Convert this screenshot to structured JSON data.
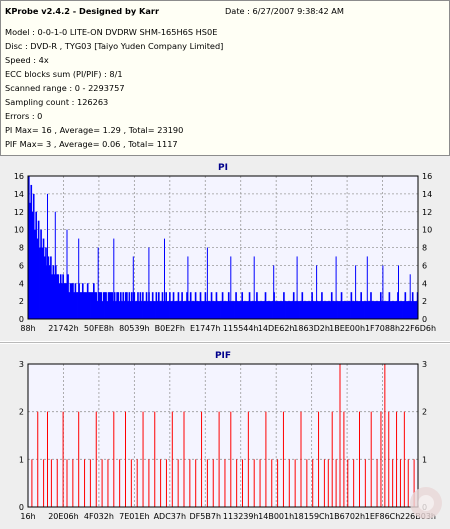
{
  "header": {
    "title": "KProbe v2.4.2 - Designed by Karr",
    "date": "Date : 6/27/2007 9:38:42 AM",
    "lines": [
      "Model : 0-0-1-0 LITE-ON DVDRW SHM-165H6S HS0E",
      "Disc : DVD-R , TYG03 [Taiyo Yuden Company Limited]",
      "Speed : 4x",
      "ECC blocks sum (PI/PIF) : 8/1",
      "Scanned range : 0 - 2293757",
      "Sampling count : 126263",
      "Errors : 0",
      "PI Max= 16 , Average= 1.29 , Total= 23190",
      "PIF Max= 3 , Average= 0.06 , Total= 1117"
    ]
  },
  "chart_data": [
    {
      "type": "bar",
      "title": "PI",
      "color": "#0000ff",
      "ylim": [
        0,
        16
      ],
      "yticks": [
        0,
        2,
        4,
        6,
        8,
        10,
        12,
        14,
        16
      ],
      "xticks": [
        "88h",
        "21742h",
        "50FE8h",
        "80539h",
        "B0E2Fh",
        "E1747h",
        "115544h",
        "14DE62h",
        "1863D2h",
        "1BEE00h",
        "1F7088h",
        "22F6D6h"
      ],
      "grid": true,
      "values": [
        16,
        13,
        15,
        12,
        14,
        10,
        12,
        9,
        11,
        8,
        10,
        8,
        9,
        7,
        8,
        6,
        7,
        6,
        7,
        5,
        6,
        5,
        6,
        5,
        5,
        4,
        5,
        4,
        5,
        4,
        4,
        4,
        5,
        3,
        4,
        4,
        4,
        3,
        4,
        3,
        3,
        4,
        3,
        3,
        4,
        3,
        3,
        3,
        4,
        3,
        3,
        3,
        3,
        4,
        3,
        3,
        2,
        3,
        3,
        3,
        2,
        3,
        3,
        3,
        2,
        3,
        3,
        3,
        3,
        2,
        3,
        2,
        3,
        3,
        2,
        3,
        2,
        3,
        2,
        3,
        3,
        2,
        3,
        2,
        3,
        2,
        3,
        2,
        2,
        3,
        2,
        3,
        2,
        3,
        2,
        2,
        3,
        2,
        3,
        2,
        2,
        3,
        2,
        2,
        3,
        2,
        3,
        2,
        2,
        3,
        2,
        2,
        3,
        2,
        2,
        3,
        2,
        2,
        3,
        2,
        2,
        2,
        3,
        2,
        2,
        3,
        2,
        2,
        2,
        3,
        2,
        2,
        3,
        2,
        2,
        2,
        3,
        2,
        2,
        2,
        3,
        2,
        2,
        2,
        3,
        2,
        2,
        2,
        2,
        3,
        2,
        2,
        2,
        3,
        2,
        2,
        2,
        2,
        3,
        2,
        2,
        2,
        2,
        3,
        2,
        2,
        2,
        2,
        2,
        3,
        2,
        2,
        2,
        2,
        3,
        2,
        2,
        2,
        2,
        2,
        3,
        2,
        2,
        2,
        2,
        2,
        3,
        2,
        2,
        2,
        2,
        2,
        2,
        3,
        2,
        2,
        2,
        2,
        2,
        2,
        3,
        2,
        2,
        2,
        2,
        2,
        2,
        2,
        3,
        2,
        2,
        2,
        2,
        2,
        2,
        2,
        3,
        2,
        2,
        2,
        2,
        2,
        2,
        3,
        2,
        2,
        2,
        2,
        2,
        2,
        2,
        3,
        2,
        2,
        2,
        2,
        2,
        2,
        2,
        3,
        2,
        2,
        2,
        2,
        2,
        2,
        2,
        3,
        2,
        2,
        2,
        2,
        2,
        2,
        2,
        3,
        2,
        2,
        2,
        2,
        2,
        2,
        2,
        3,
        2,
        2,
        2,
        2,
        2,
        2,
        2,
        3,
        2,
        2,
        2,
        2,
        2,
        2,
        2,
        3,
        2,
        2,
        2,
        2,
        2,
        2,
        2,
        3,
        2,
        2,
        2,
        2,
        2,
        2,
        3,
        2,
        2,
        2,
        2,
        2,
        2,
        3,
        2,
        2,
        2,
        2,
        2,
        3,
        2,
        2,
        2,
        2,
        2,
        3,
        2,
        2,
        2,
        3
      ],
      "peaks": [
        {
          "x": 0.05,
          "v": 14
        },
        {
          "x": 0.07,
          "v": 12
        },
        {
          "x": 0.1,
          "v": 10
        },
        {
          "x": 0.13,
          "v": 9
        },
        {
          "x": 0.18,
          "v": 8
        },
        {
          "x": 0.22,
          "v": 9
        },
        {
          "x": 0.27,
          "v": 7
        },
        {
          "x": 0.31,
          "v": 8
        },
        {
          "x": 0.35,
          "v": 9
        },
        {
          "x": 0.41,
          "v": 7
        },
        {
          "x": 0.46,
          "v": 8
        },
        {
          "x": 0.52,
          "v": 7
        },
        {
          "x": 0.58,
          "v": 7
        },
        {
          "x": 0.63,
          "v": 6
        },
        {
          "x": 0.69,
          "v": 7
        },
        {
          "x": 0.74,
          "v": 6
        },
        {
          "x": 0.79,
          "v": 7
        },
        {
          "x": 0.84,
          "v": 6
        },
        {
          "x": 0.87,
          "v": 7
        },
        {
          "x": 0.91,
          "v": 6
        },
        {
          "x": 0.95,
          "v": 6
        },
        {
          "x": 0.98,
          "v": 5
        }
      ]
    },
    {
      "type": "bar",
      "title": "PIF",
      "color": "#ff0000",
      "ylim": [
        0,
        3
      ],
      "yticks": [
        0,
        1,
        2,
        3
      ],
      "xticks": [
        "16h",
        "20E06h",
        "4F032h",
        "7E01Eh",
        "ADC37h",
        "DF5B7h",
        "113239h",
        "14B001h",
        "18159Ch",
        "1B6702h",
        "1EF86Ch",
        "226B03h"
      ],
      "grid": true,
      "bars": [
        {
          "x": 0.01,
          "v": 1
        },
        {
          "x": 0.025,
          "v": 2
        },
        {
          "x": 0.04,
          "v": 1
        },
        {
          "x": 0.05,
          "v": 2
        },
        {
          "x": 0.06,
          "v": 1
        },
        {
          "x": 0.075,
          "v": 1
        },
        {
          "x": 0.09,
          "v": 2
        },
        {
          "x": 0.1,
          "v": 1
        },
        {
          "x": 0.115,
          "v": 1
        },
        {
          "x": 0.13,
          "v": 2
        },
        {
          "x": 0.145,
          "v": 1
        },
        {
          "x": 0.16,
          "v": 1
        },
        {
          "x": 0.175,
          "v": 2
        },
        {
          "x": 0.19,
          "v": 1
        },
        {
          "x": 0.205,
          "v": 1
        },
        {
          "x": 0.22,
          "v": 2
        },
        {
          "x": 0.235,
          "v": 1
        },
        {
          "x": 0.25,
          "v": 2
        },
        {
          "x": 0.265,
          "v": 1
        },
        {
          "x": 0.28,
          "v": 1
        },
        {
          "x": 0.295,
          "v": 2
        },
        {
          "x": 0.31,
          "v": 1
        },
        {
          "x": 0.325,
          "v": 2
        },
        {
          "x": 0.34,
          "v": 1
        },
        {
          "x": 0.355,
          "v": 1
        },
        {
          "x": 0.37,
          "v": 2
        },
        {
          "x": 0.385,
          "v": 1
        },
        {
          "x": 0.4,
          "v": 2
        },
        {
          "x": 0.415,
          "v": 1
        },
        {
          "x": 0.43,
          "v": 1
        },
        {
          "x": 0.445,
          "v": 2
        },
        {
          "x": 0.46,
          "v": 1
        },
        {
          "x": 0.475,
          "v": 1
        },
        {
          "x": 0.49,
          "v": 2
        },
        {
          "x": 0.505,
          "v": 1
        },
        {
          "x": 0.52,
          "v": 2
        },
        {
          "x": 0.535,
          "v": 1
        },
        {
          "x": 0.55,
          "v": 1
        },
        {
          "x": 0.565,
          "v": 2
        },
        {
          "x": 0.58,
          "v": 1
        },
        {
          "x": 0.595,
          "v": 1
        },
        {
          "x": 0.61,
          "v": 2
        },
        {
          "x": 0.625,
          "v": 1
        },
        {
          "x": 0.64,
          "v": 1
        },
        {
          "x": 0.655,
          "v": 2
        },
        {
          "x": 0.67,
          "v": 1
        },
        {
          "x": 0.685,
          "v": 1
        },
        {
          "x": 0.7,
          "v": 2
        },
        {
          "x": 0.715,
          "v": 1
        },
        {
          "x": 0.73,
          "v": 1
        },
        {
          "x": 0.745,
          "v": 2
        },
        {
          "x": 0.76,
          "v": 1
        },
        {
          "x": 0.77,
          "v": 1
        },
        {
          "x": 0.78,
          "v": 2
        },
        {
          "x": 0.79,
          "v": 1
        },
        {
          "x": 0.8,
          "v": 3
        },
        {
          "x": 0.81,
          "v": 2
        },
        {
          "x": 0.82,
          "v": 1
        },
        {
          "x": 0.835,
          "v": 1
        },
        {
          "x": 0.85,
          "v": 2
        },
        {
          "x": 0.865,
          "v": 1
        },
        {
          "x": 0.88,
          "v": 2
        },
        {
          "x": 0.895,
          "v": 1
        },
        {
          "x": 0.905,
          "v": 2
        },
        {
          "x": 0.915,
          "v": 3
        },
        {
          "x": 0.925,
          "v": 2
        },
        {
          "x": 0.935,
          "v": 1
        },
        {
          "x": 0.945,
          "v": 2
        },
        {
          "x": 0.955,
          "v": 1
        },
        {
          "x": 0.965,
          "v": 2
        },
        {
          "x": 0.975,
          "v": 1
        },
        {
          "x": 0.99,
          "v": 1
        }
      ]
    }
  ]
}
